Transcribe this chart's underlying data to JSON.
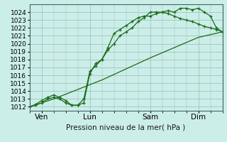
{
  "background_color": "#cceee8",
  "grid_color": "#99bbbb",
  "line_color": "#1a6b1a",
  "xlabel_text": "Pression niveau de la mer( hPa )",
  "xtick_labels": [
    "Ven",
    "Lun",
    "Sam",
    "Dim"
  ],
  "ylim": [
    1011.5,
    1025.0
  ],
  "xlim": [
    0,
    96
  ],
  "xtick_positions": [
    6,
    30,
    60,
    84
  ],
  "ytick_positions": [
    1012,
    1013,
    1014,
    1015,
    1016,
    1017,
    1018,
    1019,
    1020,
    1021,
    1022,
    1023,
    1024
  ],
  "line1_x": [
    0,
    3,
    6,
    9,
    12,
    15,
    18,
    21,
    24,
    27,
    30,
    33,
    36,
    39,
    42,
    45,
    48,
    51,
    54,
    57,
    60,
    63,
    66,
    69,
    72,
    75,
    78,
    81,
    84,
    87,
    90,
    93,
    96
  ],
  "line1_y": [
    1012.0,
    1012.2,
    1012.5,
    1013.0,
    1013.2,
    1013.0,
    1012.5,
    1012.2,
    1012.2,
    1012.5,
    1016.2,
    1017.5,
    1018.0,
    1019.2,
    1020.0,
    1021.0,
    1021.5,
    1022.0,
    1022.8,
    1023.3,
    1024.0,
    1024.0,
    1024.0,
    1024.2,
    1024.0,
    1024.5,
    1024.5,
    1024.3,
    1024.5,
    1024.0,
    1023.5,
    1022.0,
    1021.5
  ],
  "line2_x": [
    0,
    3,
    6,
    9,
    12,
    15,
    18,
    21,
    24,
    27,
    30,
    33,
    36,
    39,
    42,
    45,
    48,
    51,
    54,
    57,
    60,
    63,
    66,
    69,
    72,
    75,
    78,
    81,
    84,
    87,
    90,
    93,
    96
  ],
  "line2_y": [
    1012.0,
    1012.3,
    1012.8,
    1013.2,
    1013.5,
    1013.2,
    1012.8,
    1012.2,
    1012.2,
    1013.0,
    1016.5,
    1017.2,
    1018.0,
    1019.5,
    1021.3,
    1021.8,
    1022.3,
    1022.8,
    1023.3,
    1023.5,
    1023.5,
    1023.8,
    1024.0,
    1023.8,
    1023.5,
    1023.2,
    1023.0,
    1022.8,
    1022.5,
    1022.2,
    1022.0,
    1021.8,
    1021.5
  ],
  "line3_x": [
    0,
    12,
    24,
    36,
    48,
    60,
    72,
    84,
    96
  ],
  "line3_y": [
    1012.0,
    1013.0,
    1014.2,
    1015.4,
    1016.8,
    1018.2,
    1019.5,
    1020.8,
    1021.5
  ],
  "ytick_fontsize": 6.5,
  "xtick_fontsize": 7.5,
  "xlabel_fontsize": 7.5
}
